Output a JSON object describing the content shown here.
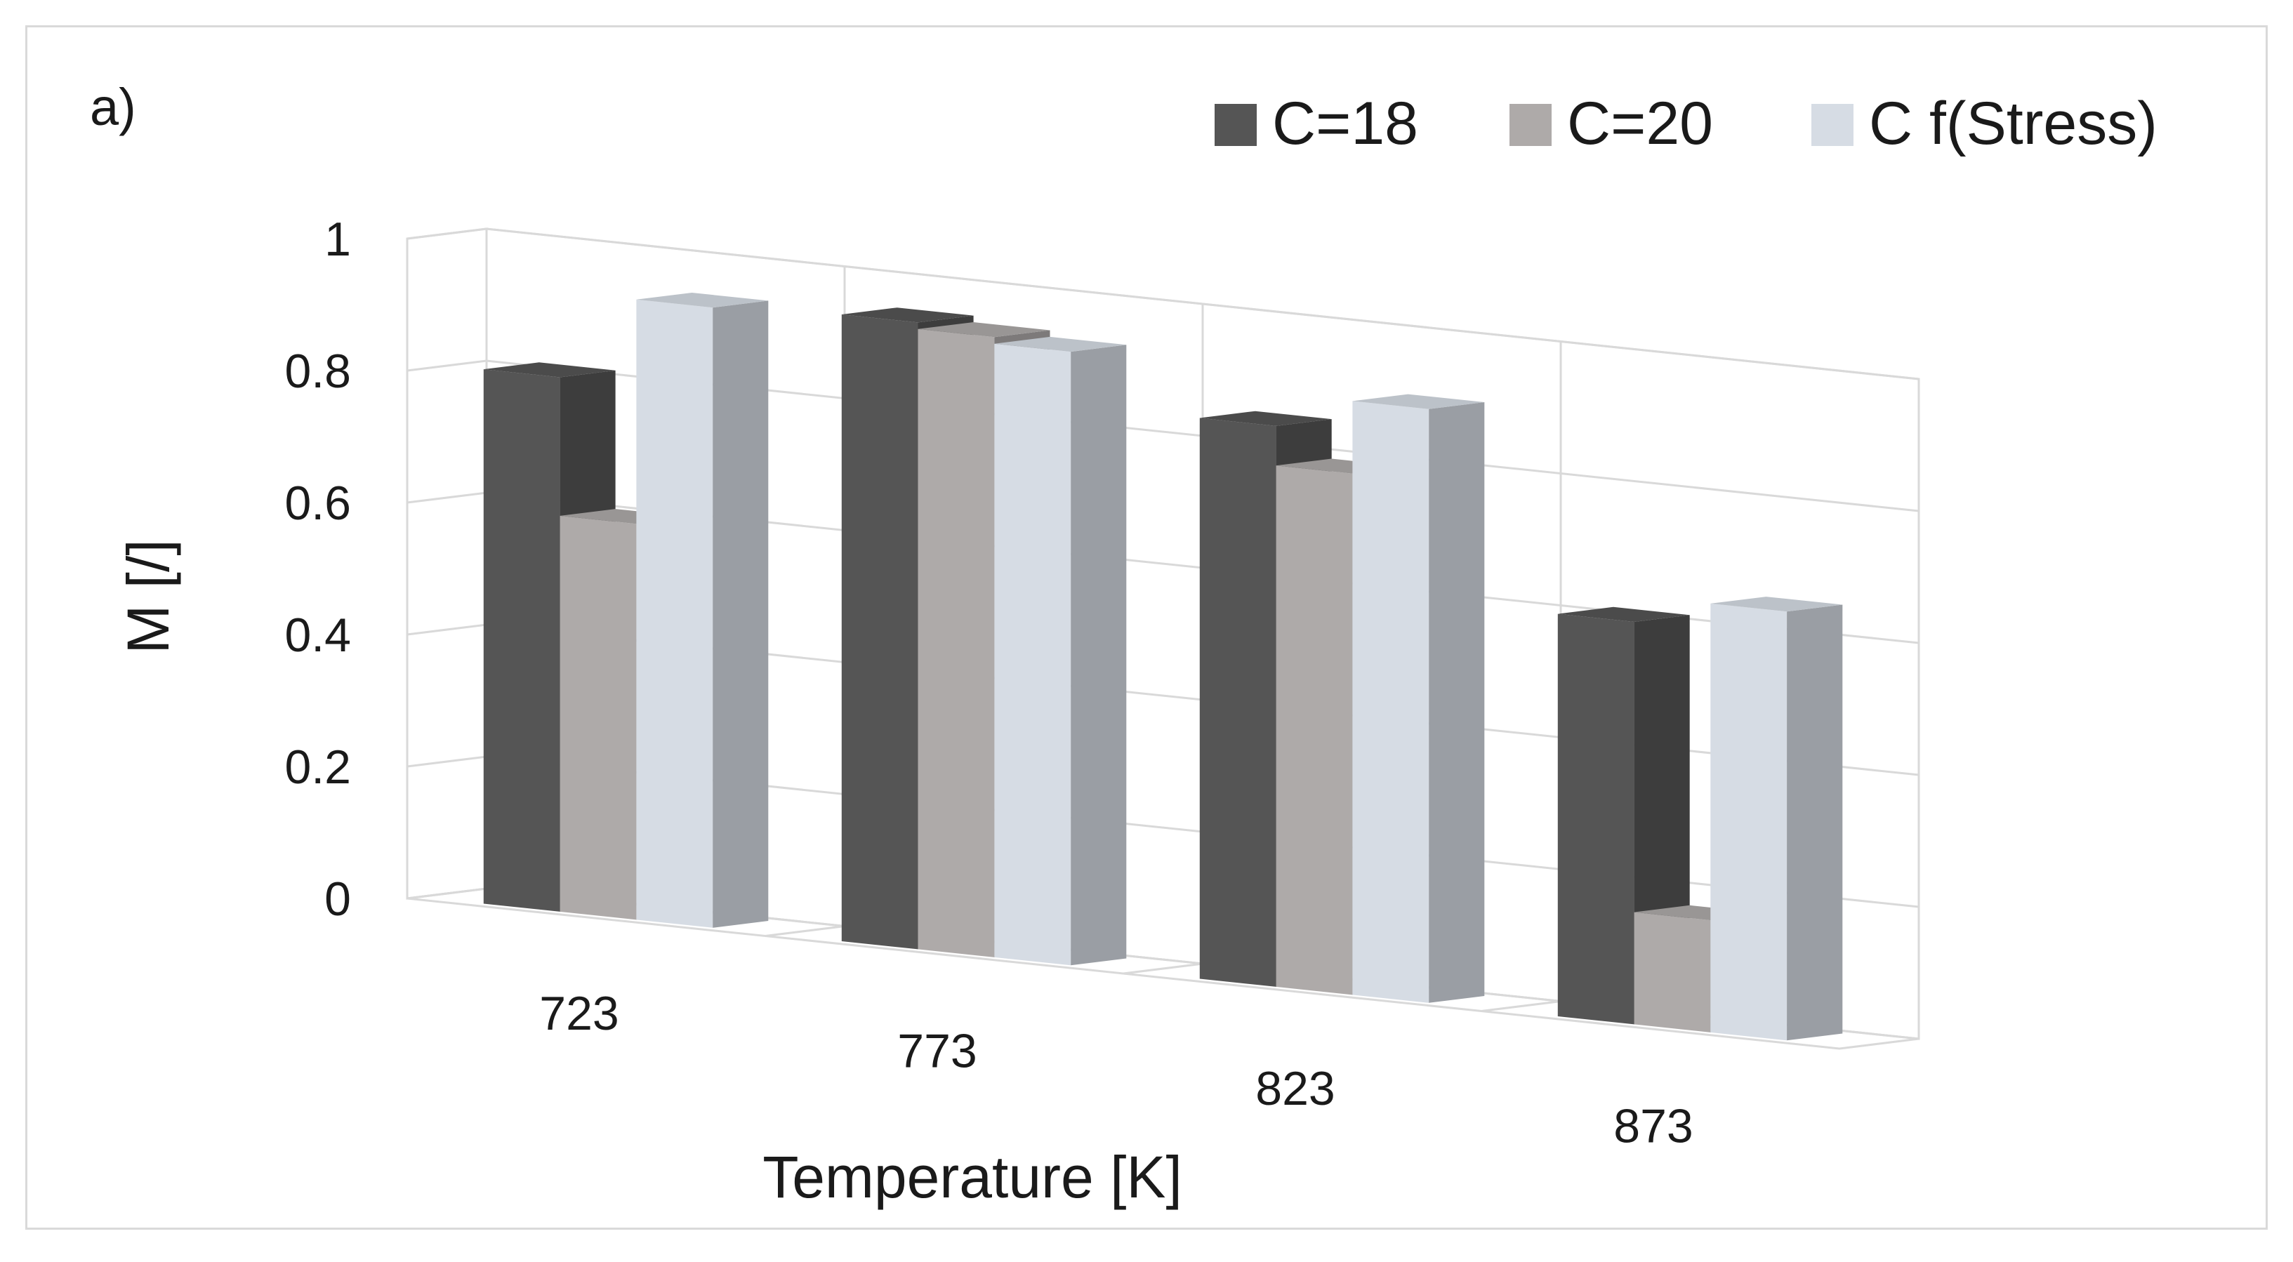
{
  "chart_data": {
    "type": "bar",
    "panel_label": "a)",
    "categories": [
      "723",
      "773",
      "823",
      "873"
    ],
    "series": [
      {
        "name": "C=18",
        "values": [
          0.81,
          0.95,
          0.85,
          0.61
        ],
        "color": "#555555"
      },
      {
        "name": "C=20",
        "values": [
          0.6,
          0.94,
          0.79,
          0.17
        ],
        "color": "#aeaaa9"
      },
      {
        "name": "C f(Stress)",
        "values": [
          0.94,
          0.93,
          0.9,
          0.65
        ],
        "color": "#d6dce4"
      }
    ],
    "yticks": [
      "0",
      "0.2",
      "0.4",
      "0.6",
      "0.8",
      "1"
    ],
    "ylim": [
      0,
      1
    ],
    "xlabel": "Temperature [K]",
    "ylabel": "M [/]",
    "grid": true,
    "legend": "top-right",
    "style": "3d-clustered-column"
  }
}
